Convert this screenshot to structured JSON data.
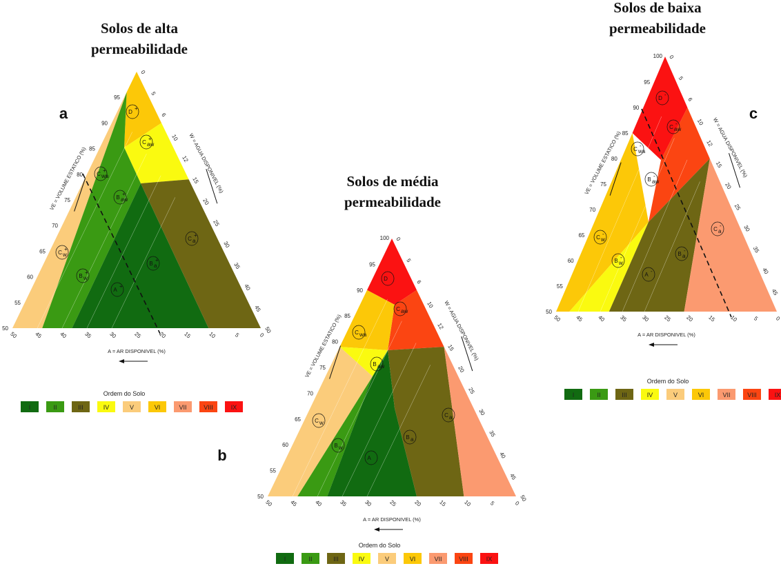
{
  "colors": {
    "I": "#116b11",
    "II": "#3a9a13",
    "III": "#6e6614",
    "IV": "#fafa10",
    "V": "#fbcc7b",
    "VI": "#fcc808",
    "VII": "#fb9a70",
    "VIII": "#fb4512",
    "IX": "#fb1212"
  },
  "legend": {
    "title": "Ordem do Solo",
    "items": [
      "I",
      "II",
      "III",
      "IV",
      "V",
      "VI",
      "VII",
      "VIII",
      "IX"
    ]
  },
  "axes": {
    "left_label": "VE = VOLUME ESTATICO (%)",
    "right_label": "W = AGUA DISPONIVEL (%)",
    "bottom_label": "A = AR DISPONIVEL (%)",
    "left_ticks": [
      "50",
      "55",
      "60",
      "65",
      "70",
      "75",
      "80",
      "85",
      "90",
      "95"
    ],
    "right_ticks": [
      "0",
      "5",
      "6",
      "10",
      "12",
      "15",
      "20",
      "25",
      "30",
      "35",
      "40",
      "45",
      "50"
    ],
    "bottom_ticks": [
      "50",
      "45",
      "40",
      "35",
      "30",
      "25",
      "20",
      "15",
      "10",
      "5",
      "0"
    ]
  },
  "panels": [
    {
      "id": "a",
      "letter": "a",
      "title_line1": "Solos de alta",
      "title_line2": "permeabilidade",
      "apex_label": "",
      "labels": [
        {
          "text": "D",
          "sup": "+",
          "sub": ""
        },
        {
          "text": "C",
          "sup": "+",
          "sub": "aw"
        },
        {
          "text": "C",
          "sup": "+",
          "sub": "wa"
        },
        {
          "text": "B",
          "sup": "+",
          "sub": "aw"
        },
        {
          "text": "C",
          "sup": "+",
          "sub": "a"
        },
        {
          "text": "C",
          "sup": "+",
          "sub": "w"
        },
        {
          "text": "B",
          "sup": "+",
          "sub": "w"
        },
        {
          "text": "B",
          "sup": "+",
          "sub": "a"
        },
        {
          "text": "A",
          "sup": "+",
          "sub": ""
        }
      ]
    },
    {
      "id": "b",
      "letter": "b",
      "title_line1": "Solos de média",
      "title_line2": "permeabilidade",
      "apex_label": "100",
      "labels": [
        {
          "text": "D",
          "sup": "",
          "sub": ""
        },
        {
          "text": "C",
          "sup": "",
          "sub": "aw"
        },
        {
          "text": "C",
          "sup": "",
          "sub": "wa"
        },
        {
          "text": "B",
          "sup": "",
          "sub": "aw"
        },
        {
          "text": "C",
          "sup": "",
          "sub": "a"
        },
        {
          "text": "C",
          "sup": "",
          "sub": "w"
        },
        {
          "text": "B",
          "sup": "",
          "sub": "w"
        },
        {
          "text": "B",
          "sup": "",
          "sub": "a"
        },
        {
          "text": "A",
          "sup": "",
          "sub": ""
        }
      ]
    },
    {
      "id": "c",
      "letter": "c",
      "title_line1": "Solos de baixa",
      "title_line2": "permeabilidade",
      "apex_label": "100",
      "labels": [
        {
          "text": "D",
          "sup": "-",
          "sub": ""
        },
        {
          "text": "C",
          "sup": "-",
          "sub": "aw"
        },
        {
          "text": "C",
          "sup": "-",
          "sub": "wa"
        },
        {
          "text": "B",
          "sup": "-",
          "sub": "aw"
        },
        {
          "text": "C",
          "sup": "-",
          "sub": "a"
        },
        {
          "text": "C",
          "sup": "-",
          "sub": "w"
        },
        {
          "text": "B",
          "sup": "-",
          "sub": "w"
        },
        {
          "text": "B",
          "sup": "-",
          "sub": "a"
        },
        {
          "text": "A",
          "sup": "-",
          "sub": ""
        }
      ]
    }
  ]
}
